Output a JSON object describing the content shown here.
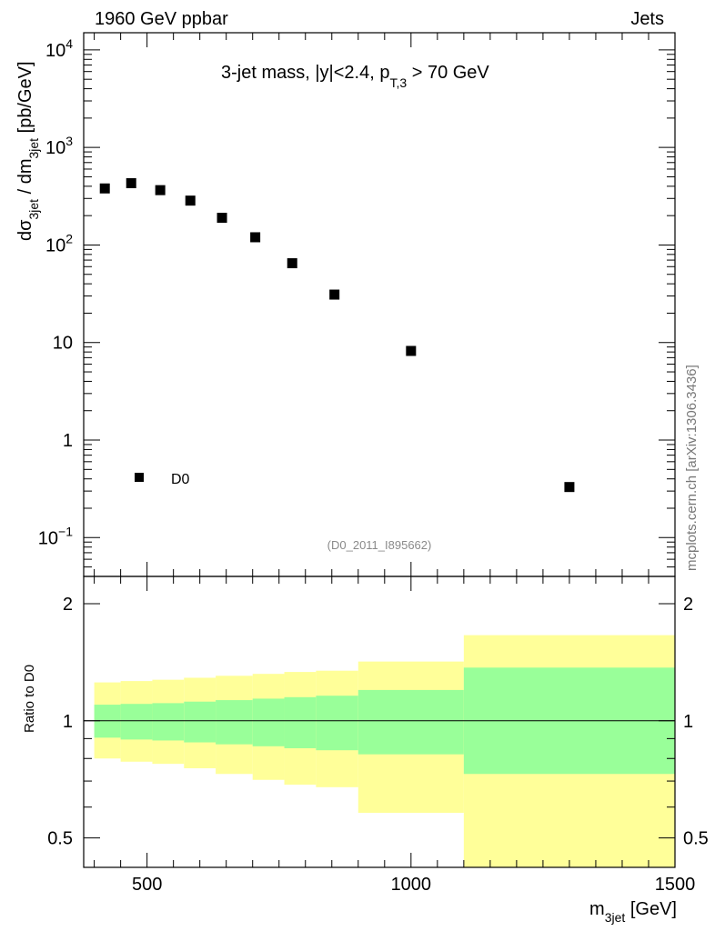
{
  "header": {
    "left": "1960 GeV ppbar",
    "right": "Jets"
  },
  "watermark": "mcplots.cern.ch [arXiv:1306.3436]",
  "chart_data": [
    {
      "type": "scatter",
      "title": "3-jet mass, |y|<2.4, p_T,3 > 70 GeV",
      "title_parts": {
        "main": "3-jet mass, |y|<2.4, p",
        "sub": "T,3",
        "rest": " > 70 GeV"
      },
      "analysis_id": "(D0_2011_I895662)",
      "yscale": "log",
      "ylim": [
        0.04,
        15000
      ],
      "xlim": [
        380,
        1500
      ],
      "ylabel_parts": {
        "d": "d",
        "sigma": "σ",
        "sub1": "3jet",
        "mid": " / dm",
        "sub2": "3jet",
        "unit": " [pb/GeV]"
      },
      "ytick_labels": [
        {
          "value": 0.1,
          "base": "10",
          "exp": "−1"
        },
        {
          "value": 1,
          "base": "1",
          "exp": ""
        },
        {
          "value": 10,
          "base": "10",
          "exp": ""
        },
        {
          "value": 100,
          "base": "10",
          "exp": "2"
        },
        {
          "value": 1000,
          "base": "10",
          "exp": "3"
        },
        {
          "value": 10000,
          "base": "10",
          "exp": "4"
        }
      ],
      "legend": {
        "label": "D0",
        "position": "bottom-left"
      },
      "series": [
        {
          "name": "D0",
          "x": [
            420,
            470,
            525,
            582,
            642,
            705,
            775,
            855,
            1000,
            1300
          ],
          "y": [
            380,
            430,
            365,
            285,
            190,
            120,
            65,
            31,
            8.2,
            0.33
          ]
        }
      ]
    },
    {
      "type": "area",
      "ylabel": "Ratio to D0",
      "xlabel": "m",
      "xlabel_sub": "3jet",
      "xlabel_unit": " [GeV]",
      "yscale": "log",
      "ylim": [
        0.42,
        2.35
      ],
      "xlim": [
        380,
        1500
      ],
      "x_ticks": [
        {
          "value": 500,
          "label": "500"
        },
        {
          "value": 1000,
          "label": "1000"
        },
        {
          "value": 1500,
          "label": "1500"
        }
      ],
      "y_ticks": [
        {
          "value": 0.5,
          "label": "0.5"
        },
        {
          "value": 1,
          "label": "1"
        },
        {
          "value": 2,
          "label": "2"
        }
      ],
      "reference_line": 1.0,
      "bins": [
        {
          "lo": 400,
          "hi": 450,
          "inner": [
            0.905,
            1.1
          ],
          "outer": [
            0.8,
            1.255
          ]
        },
        {
          "lo": 450,
          "hi": 510,
          "inner": [
            0.895,
            1.105
          ],
          "outer": [
            0.785,
            1.265
          ]
        },
        {
          "lo": 510,
          "hi": 570,
          "inner": [
            0.89,
            1.11
          ],
          "outer": [
            0.775,
            1.275
          ]
        },
        {
          "lo": 570,
          "hi": 630,
          "inner": [
            0.88,
            1.12
          ],
          "outer": [
            0.755,
            1.29
          ]
        },
        {
          "lo": 630,
          "hi": 700,
          "inner": [
            0.87,
            1.13
          ],
          "outer": [
            0.73,
            1.305
          ]
        },
        {
          "lo": 700,
          "hi": 760,
          "inner": [
            0.86,
            1.14
          ],
          "outer": [
            0.705,
            1.32
          ]
        },
        {
          "lo": 760,
          "hi": 820,
          "inner": [
            0.85,
            1.15
          ],
          "outer": [
            0.685,
            1.335
          ]
        },
        {
          "lo": 820,
          "hi": 900,
          "inner": [
            0.84,
            1.16
          ],
          "outer": [
            0.675,
            1.345
          ]
        },
        {
          "lo": 900,
          "hi": 1100,
          "inner": [
            0.82,
            1.2
          ],
          "outer": [
            0.58,
            1.42
          ]
        },
        {
          "lo": 1100,
          "hi": 1500,
          "inner": [
            0.73,
            1.37
          ],
          "outer": [
            0.42,
            1.66
          ]
        }
      ],
      "colors": {
        "inner": "#99ff99",
        "outer": "#ffff99"
      }
    }
  ]
}
